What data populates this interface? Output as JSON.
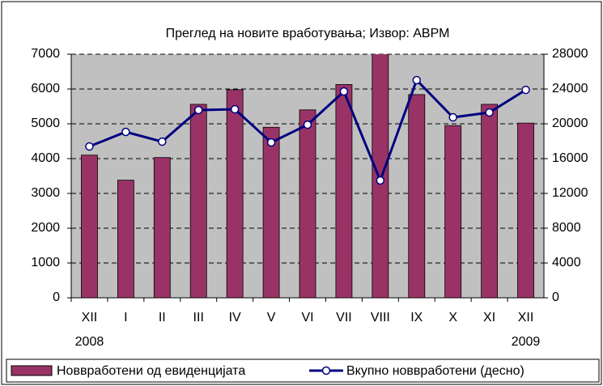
{
  "chart_data": {
    "type": "bar_line",
    "title": "Преглед на новите вработувања; Извор: АВРМ",
    "categories": [
      "XII",
      "I",
      "II",
      "III",
      "IV",
      "V",
      "VI",
      "VII",
      "VIII",
      "IX",
      "X",
      "XI",
      "XII"
    ],
    "year_labels": [
      "2008",
      null,
      null,
      null,
      null,
      null,
      null,
      null,
      null,
      null,
      null,
      null,
      "2009"
    ],
    "series": [
      {
        "name": "Новвработени од евиденцијата",
        "type": "bar",
        "color": "#993366",
        "values": [
          4100,
          3380,
          4030,
          5560,
          5980,
          4900,
          5400,
          6130,
          7300,
          5840,
          4950,
          5560,
          5020
        ]
      },
      {
        "name": "Вкупно новвработени (десно)",
        "type": "line",
        "axis": "y2",
        "color": "#000080",
        "values": [
          17400,
          19070,
          17950,
          21580,
          21670,
          17860,
          19900,
          23720,
          13490,
          25020,
          20740,
          21300,
          23900
        ]
      }
    ],
    "ylim": [
      0,
      7000
    ],
    "yticks": [
      0,
      1000,
      2000,
      3000,
      4000,
      5000,
      6000,
      7000
    ],
    "y2lim": [
      0,
      28000
    ],
    "y2ticks": [
      0,
      4000,
      8000,
      12000,
      16000,
      20000,
      24000,
      28000
    ],
    "grid": true,
    "legend": "bottom"
  }
}
